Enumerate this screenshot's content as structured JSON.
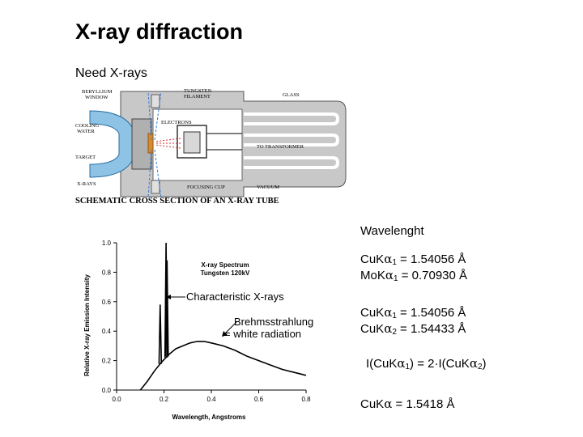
{
  "title": "X-ray diffraction",
  "subtitle": "Need X-rays",
  "tube": {
    "labels": {
      "beryllium": "BERYLLIUM",
      "window": "WINDOW",
      "tungsten": "TUNGSTEN",
      "filament": "FILAMENT",
      "glass": "GLASS",
      "cooling": "COOLING",
      "water": "WATER",
      "electrons": "ELECTRONS",
      "to_transformer": "TO TRANSFORMER",
      "target": "TARGET",
      "xrays": "X-RAYS",
      "focusing_cup": "FOCUSING CUP",
      "vacuum": "VACUUM",
      "caption": "SCHEMATIC CROSS SECTION OF AN X-RAY TUBE"
    }
  },
  "chart_data": {
    "type": "line",
    "title": "X-ray Spectrum",
    "subtitle": "Tungsten 120kV",
    "xlabel": "Wavelength, Angstroms",
    "ylabel": "Relative X-ray Emission Intensity",
    "xlim": [
      0.0,
      0.8
    ],
    "ylim": [
      0.0,
      1.0
    ],
    "x_ticks": [
      "0.0",
      "0.2",
      "0.4",
      "0.6",
      "0.8"
    ],
    "y_ticks": [
      "0.0",
      "0.2",
      "0.4",
      "0.6",
      "0.8",
      "1.0"
    ],
    "series": [
      {
        "x": [
          0.1,
          0.13,
          0.16,
          0.19,
          0.22,
          0.25,
          0.28,
          0.31,
          0.34,
          0.37,
          0.4,
          0.45,
          0.5,
          0.55,
          0.6,
          0.65,
          0.7,
          0.75,
          0.8
        ],
        "y": [
          0.0,
          0.06,
          0.13,
          0.19,
          0.24,
          0.28,
          0.3,
          0.32,
          0.33,
          0.33,
          0.32,
          0.3,
          0.27,
          0.23,
          0.2,
          0.17,
          0.14,
          0.12,
          0.1
        ]
      }
    ],
    "peaks": [
      {
        "x": 0.184,
        "y": 0.58
      },
      {
        "x": 0.209,
        "y": 1.0
      },
      {
        "x": 0.213,
        "y": 0.88
      }
    ]
  },
  "annotations": {
    "characteristic": "Characteristic X-rays",
    "brehm_line1": "Brehmsstrahlung",
    "brehm_line2": "= white radiation"
  },
  "notes": {
    "wavelength_heading": "Wavelenght",
    "alpha": "α",
    "cu_ka": "CuK",
    "mo_ka": "MoK",
    "sub1": "1",
    "sub2": "2",
    "cu_ka1_value": " = 1.54056 Å",
    "mo_ka1_value": " = 0.70930 Å",
    "cu_ka2_value": " = 1.54433 Å",
    "ratio_prefix": "I(CuK",
    "ratio_mid": ") = 2·I(CuK",
    "ratio_end": ")",
    "cu_ka_avg_value": " = 1.5418 Å"
  }
}
